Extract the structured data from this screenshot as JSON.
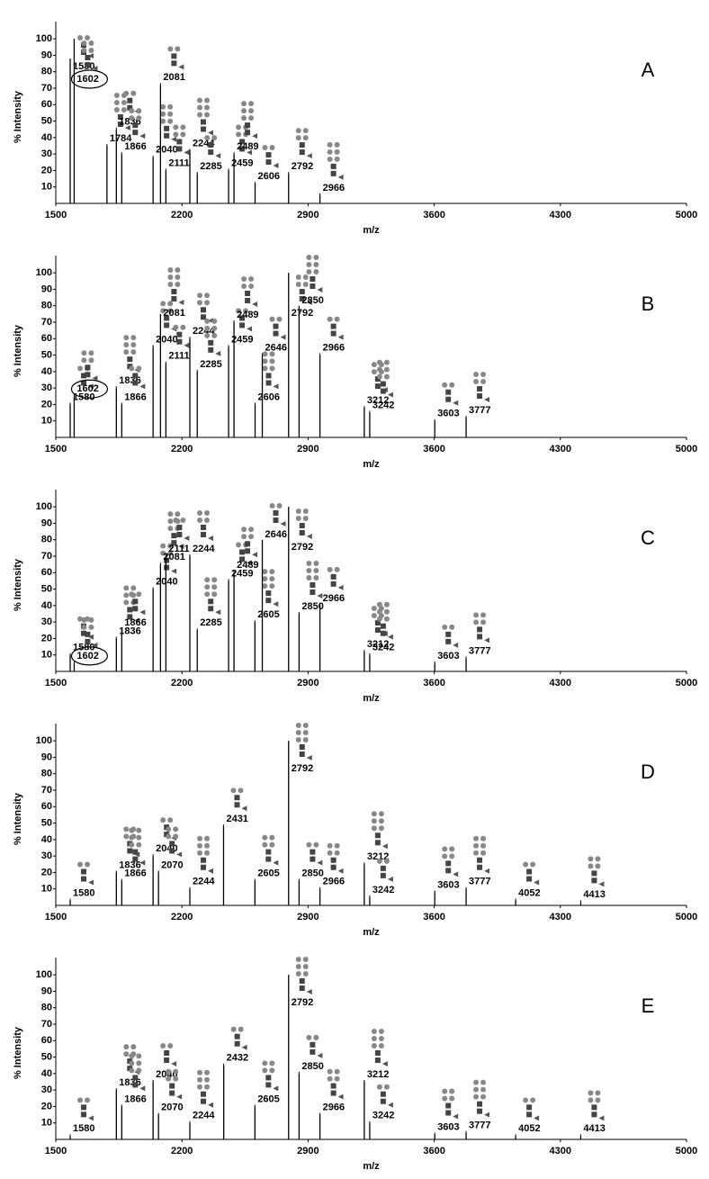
{
  "chart_data": [
    {
      "type": "spectrum",
      "panel": "A",
      "xlabel": "m/z",
      "ylabel": "% Intensity",
      "color": "#000000",
      "xlim": [
        1500,
        5000
      ],
      "ylim": [
        0,
        105
      ],
      "xticks": [
        1500,
        2200,
        2900,
        3600,
        4300,
        5000
      ],
      "yticks": [
        10,
        20,
        30,
        40,
        50,
        60,
        70,
        80,
        90,
        100
      ],
      "x": [
        1580,
        1602,
        1784,
        1836,
        1866,
        2040,
        2081,
        2111,
        2244,
        2285,
        2459,
        2489,
        2606,
        2792,
        2966
      ],
      "values": [
        88,
        100,
        35,
        45,
        30,
        28,
        72,
        20,
        32,
        18,
        20,
        30,
        12,
        18,
        5
      ],
      "circled": [
        false,
        true,
        false,
        false,
        false,
        false,
        false,
        false,
        false,
        false,
        false,
        false,
        false,
        false,
        false
      ]
    },
    {
      "type": "spectrum",
      "panel": "B",
      "xlabel": "m/z",
      "ylabel": "% Intensity",
      "color": "#000000",
      "xlim": [
        1500,
        5000
      ],
      "ylim": [
        0,
        105
      ],
      "xticks": [
        1500,
        2200,
        2900,
        3600,
        4300,
        5000
      ],
      "yticks": [
        10,
        20,
        30,
        40,
        50,
        60,
        70,
        80,
        90,
        100
      ],
      "x": [
        1580,
        1602,
        1836,
        1866,
        2040,
        2081,
        2111,
        2244,
        2285,
        2459,
        2489,
        2606,
        2646,
        2792,
        2850,
        2966,
        3212,
        3242,
        3603,
        3777
      ],
      "values": [
        20,
        25,
        30,
        20,
        55,
        75,
        45,
        60,
        40,
        55,
        70,
        20,
        50,
        100,
        80,
        50,
        18,
        15,
        10,
        12
      ],
      "circled": [
        false,
        true,
        false,
        false,
        false,
        false,
        false,
        false,
        false,
        false,
        false,
        false,
        false,
        false,
        false,
        false,
        false,
        false,
        false,
        false
      ]
    },
    {
      "type": "spectrum",
      "panel": "C",
      "xlabel": "m/z",
      "ylabel": "% Intensity",
      "color": "#000000",
      "xlim": [
        1500,
        5000
      ],
      "ylim": [
        0,
        105
      ],
      "xticks": [
        1500,
        2200,
        2900,
        3600,
        4300,
        5000
      ],
      "yticks": [
        10,
        20,
        30,
        40,
        50,
        60,
        70,
        80,
        90,
        100
      ],
      "x": [
        1580,
        1602,
        1836,
        1866,
        2040,
        2081,
        2111,
        2244,
        2285,
        2459,
        2489,
        2605,
        2646,
        2792,
        2850,
        2966,
        3212,
        3242,
        3603,
        3777
      ],
      "values": [
        10,
        5,
        20,
        25,
        50,
        65,
        70,
        70,
        25,
        55,
        60,
        30,
        80,
        100,
        35,
        40,
        12,
        10,
        5,
        8
      ],
      "circled": [
        false,
        true,
        false,
        false,
        false,
        false,
        false,
        false,
        false,
        false,
        false,
        false,
        false,
        false,
        false,
        false,
        false,
        false,
        false,
        false
      ]
    },
    {
      "type": "spectrum",
      "panel": "D",
      "xlabel": "m/z",
      "ylabel": "% Intensity",
      "color": "#000000",
      "xlim": [
        1500,
        5000
      ],
      "ylim": [
        0,
        105
      ],
      "xticks": [
        1500,
        2200,
        2900,
        3600,
        4300,
        5000
      ],
      "yticks": [
        10,
        20,
        30,
        40,
        50,
        60,
        70,
        80,
        90,
        100
      ],
      "x": [
        1580,
        1836,
        1866,
        2040,
        2070,
        2244,
        2431,
        2605,
        2792,
        2850,
        2966,
        3212,
        3242,
        3603,
        3777,
        4052,
        4413
      ],
      "values": [
        3,
        20,
        15,
        30,
        20,
        10,
        48,
        15,
        100,
        15,
        10,
        25,
        5,
        8,
        10,
        3,
        2
      ]
    },
    {
      "type": "spectrum",
      "panel": "E",
      "xlabel": "m/z",
      "ylabel": "% Intensity",
      "color": "#000000",
      "xlim": [
        1500,
        5000
      ],
      "ylim": [
        0,
        105
      ],
      "xticks": [
        1500,
        2200,
        2900,
        3600,
        4300,
        5000
      ],
      "yticks": [
        10,
        20,
        30,
        40,
        50,
        60,
        70,
        80,
        90,
        100
      ],
      "x": [
        1580,
        1836,
        1866,
        2040,
        2070,
        2244,
        2432,
        2605,
        2792,
        2850,
        2966,
        3212,
        3242,
        3603,
        3777,
        4052,
        4413
      ],
      "values": [
        2,
        30,
        20,
        35,
        15,
        10,
        45,
        20,
        100,
        40,
        15,
        35,
        10,
        3,
        4,
        2,
        2
      ]
    }
  ]
}
